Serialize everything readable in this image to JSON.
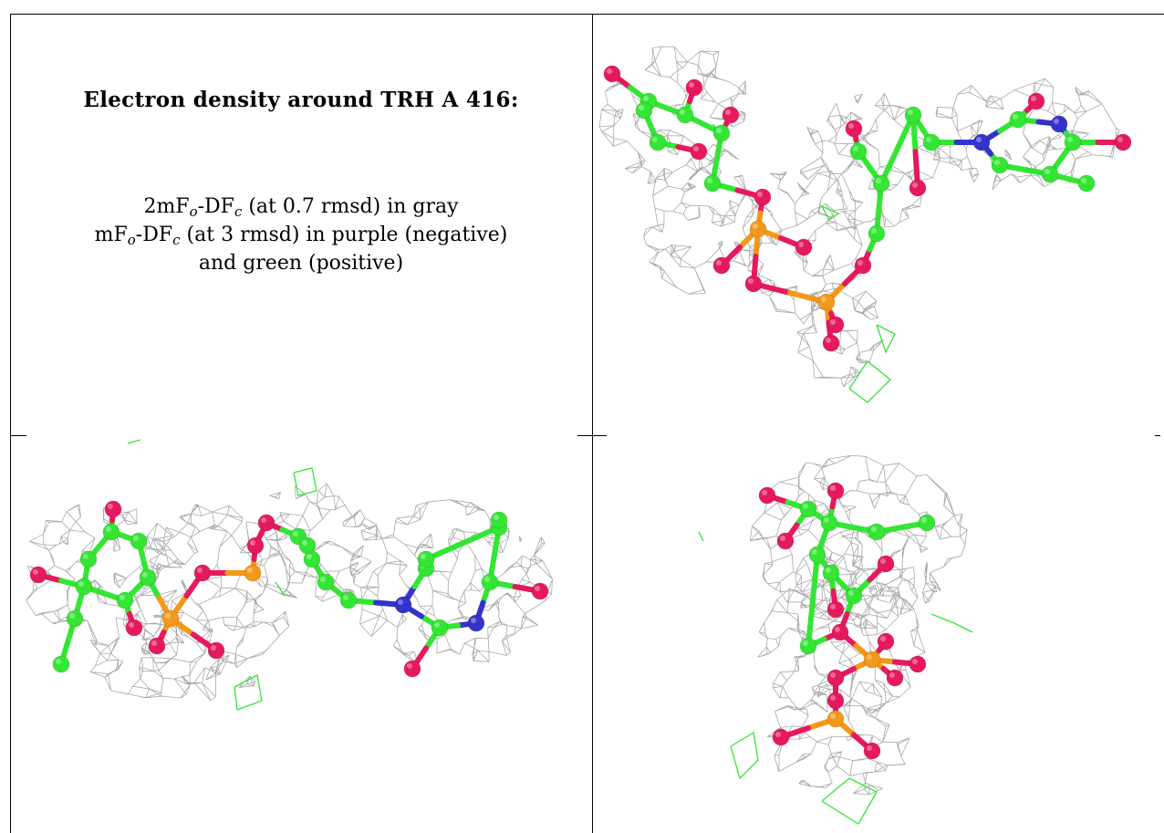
{
  "caption": {
    "title": "Electron density around TRH A 416:",
    "line1": {
      "pre": "2mF",
      "sub1": "o",
      "mid": "-DF",
      "sub2": "c",
      "post": " (at 0.7 rmsd) in gray"
    },
    "line2": {
      "pre": "mF",
      "sub1": "o",
      "mid": "-DF",
      "sub2": "c",
      "post": " (at 3 rmsd) in purple (negative)"
    },
    "line3": "and green (positive)"
  },
  "colors": {
    "carbon": "#33e633",
    "oxygen": "#e6195e",
    "nitrogen": "#3333cc",
    "phosphorus": "#f2991a",
    "mesh_2fofc": "#9a9a9a",
    "mesh_fofc_positive": "#33e633",
    "grid_line": "#000000"
  },
  "panels": [
    {
      "id": "caption"
    },
    {
      "id": "view-1",
      "subject": "TRH A 416"
    },
    {
      "id": "view-2",
      "subject": "TRH A 416"
    },
    {
      "id": "view-3",
      "subject": "TRH A 416"
    }
  ]
}
